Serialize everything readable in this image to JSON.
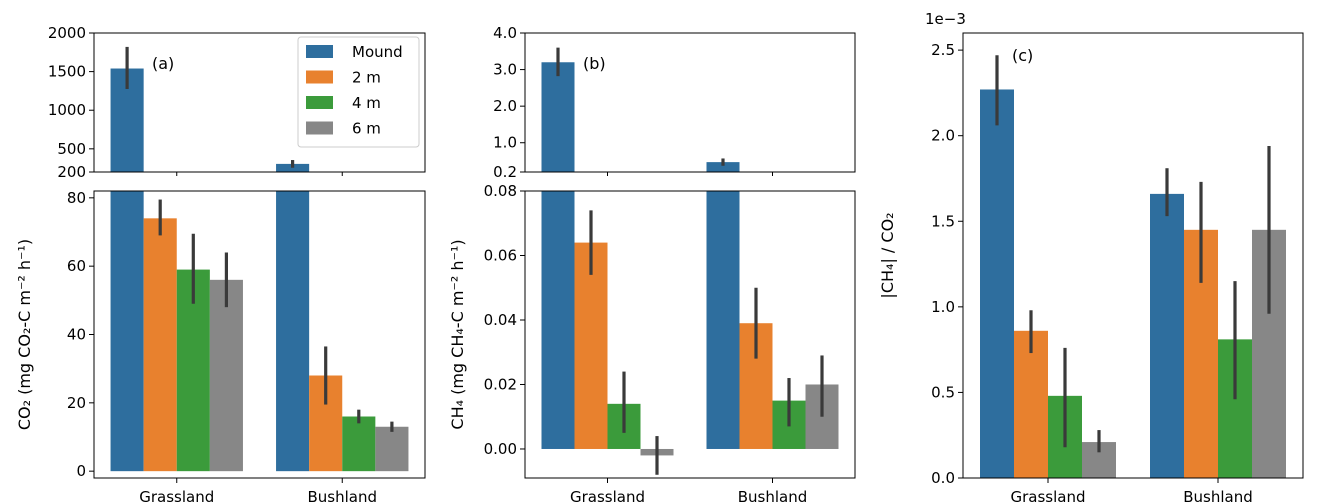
{
  "chart_data": [
    {
      "id": "a",
      "type": "bar",
      "panel_label": "(a)",
      "ylabel": "CO₂ (mg CO₂-C m⁻² h⁻¹)",
      "categories": [
        "Grassland",
        "Bushland"
      ],
      "broken_axis": true,
      "upper": {
        "ylim": [
          200,
          2000
        ],
        "ticks": [
          200,
          500,
          1000,
          1500,
          2000
        ]
      },
      "lower": {
        "ylim": [
          -2,
          82
        ],
        "ticks": [
          0,
          20,
          40,
          60,
          80
        ]
      },
      "series": [
        {
          "name": "Mound",
          "values": [
            1540,
            305
          ],
          "err_low": [
            1275,
            255
          ],
          "err_high": [
            1820,
            355
          ]
        },
        {
          "name": "2 m",
          "values": [
            74,
            28
          ],
          "err_low": [
            69,
            19.5
          ],
          "err_high": [
            79.5,
            36.5
          ]
        },
        {
          "name": "4 m",
          "values": [
            59,
            16
          ],
          "err_low": [
            49,
            14
          ],
          "err_high": [
            69.5,
            18
          ]
        },
        {
          "name": "6 m",
          "values": [
            56,
            13
          ],
          "err_low": [
            48,
            11.5
          ],
          "err_high": [
            64,
            14.5
          ]
        }
      ],
      "legend": {
        "location": "top-right",
        "entries": [
          "Mound",
          "2 m",
          "4 m",
          "6 m"
        ]
      }
    },
    {
      "id": "b",
      "type": "bar",
      "panel_label": "(b)",
      "ylabel": "CH₄ (mg CH₄-C m⁻² h⁻¹)",
      "categories": [
        "Grassland",
        "Bushland"
      ],
      "broken_axis": true,
      "upper": {
        "ylim": [
          0.2,
          4.0
        ],
        "ticks": [
          0.2,
          1.0,
          2.0,
          3.0,
          4.0
        ]
      },
      "lower": {
        "ylim": [
          -0.009,
          0.08
        ],
        "ticks": [
          0.0,
          0.02,
          0.04,
          0.06,
          0.08
        ]
      },
      "series": [
        {
          "name": "Mound",
          "values": [
            3.2,
            0.47
          ],
          "err_low": [
            2.82,
            0.37
          ],
          "err_high": [
            3.6,
            0.57
          ]
        },
        {
          "name": "2 m",
          "values": [
            0.064,
            0.039
          ],
          "err_low": [
            0.054,
            0.028
          ],
          "err_high": [
            0.074,
            0.05
          ]
        },
        {
          "name": "4 m",
          "values": [
            0.014,
            0.015
          ],
          "err_low": [
            0.005,
            0.007
          ],
          "err_high": [
            0.024,
            0.022
          ]
        },
        {
          "name": "6 m",
          "values": [
            -0.002,
            0.02
          ],
          "err_low": [
            -0.008,
            0.01
          ],
          "err_high": [
            0.004,
            0.029
          ]
        }
      ]
    },
    {
      "id": "c",
      "type": "bar",
      "panel_label": "(c)",
      "ylabel": "|CH₄| / CO₂",
      "scale_label": "1e−3",
      "categories": [
        "Grassland",
        "Bushland"
      ],
      "ylim": [
        0,
        2.6
      ],
      "ticks": [
        0.0,
        0.5,
        1.0,
        1.5,
        2.0,
        2.5
      ],
      "series": [
        {
          "name": "Mound",
          "values": [
            2.27,
            1.66
          ],
          "err_low": [
            2.06,
            1.53
          ],
          "err_high": [
            2.47,
            1.81
          ]
        },
        {
          "name": "2 m",
          "values": [
            0.86,
            1.45
          ],
          "err_low": [
            0.73,
            1.14
          ],
          "err_high": [
            0.98,
            1.73
          ]
        },
        {
          "name": "4 m",
          "values": [
            0.48,
            0.81
          ],
          "err_low": [
            0.18,
            0.46
          ],
          "err_high": [
            0.76,
            1.15
          ]
        },
        {
          "name": "6 m",
          "values": [
            0.21,
            1.45
          ],
          "err_low": [
            0.15,
            0.96
          ],
          "err_high": [
            0.28,
            1.94
          ]
        }
      ]
    }
  ],
  "colors": {
    "Mound": "#2e6e9e",
    "2 m": "#e8812e",
    "4 m": "#3b9b3b",
    "6 m": "#878787",
    "error_bar": "#3a3a3a"
  }
}
